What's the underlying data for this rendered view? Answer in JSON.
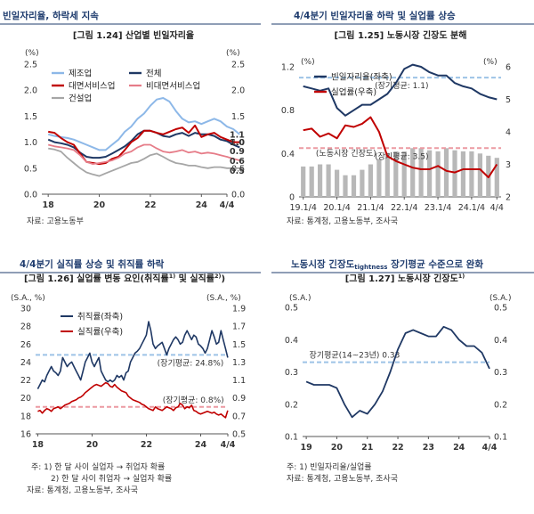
{
  "headers": {
    "tl": "빈일자리율, 하락세 지속",
    "tr": "4/4분기 빈일자리율 하락 및 실업률 상승",
    "bl": "4/4분기 실직률 상승 및 취직률 하락",
    "br_pre": "노동시장 긴장도",
    "br_sub": "tightness",
    "br_post": " 장기평균 수준으로 완화"
  },
  "colors": {
    "navy": "#1f3864",
    "red": "#c00000",
    "pink": "#e67c88",
    "pink_avg": "#ec9aa2",
    "sky": "#8db8e8",
    "sky_avg": "#9dc3e6",
    "blue": "#4472c4",
    "gray": "#a6a6a6",
    "gray_light": "#b8b8b8",
    "header_line": "#1f3c6e"
  },
  "chart_data": [
    {
      "id": "1.24",
      "type": "line",
      "title": "[그림 1.24] 산업별 빈일자리율",
      "units": {
        "left": "(%)",
        "right": "(%)"
      },
      "ylim": [
        0,
        2.5
      ],
      "yticks_left": [
        "0.0",
        "0.5",
        "1.0",
        "1.5",
        "2.0",
        "2.5"
      ],
      "yticks_right": [
        "0.0",
        "0.5",
        "1.0",
        "1.5",
        "2.0",
        "2.5"
      ],
      "xlim": [
        17.75,
        25.0
      ],
      "xticks": [
        {
          "v": 18,
          "label": "18"
        },
        {
          "v": 20,
          "label": "20"
        },
        {
          "v": 22,
          "label": "22"
        },
        {
          "v": 24,
          "label": "24"
        },
        {
          "v": 25,
          "label": "4/4"
        }
      ],
      "x_start": 18.0,
      "x_step": 0.25,
      "series": [
        {
          "name": "제조업",
          "color": "sky",
          "width": 2.0,
          "values": [
            1.15,
            1.12,
            1.1,
            1.08,
            1.05,
            1.0,
            0.95,
            0.9,
            0.85,
            0.85,
            0.95,
            1.05,
            1.2,
            1.3,
            1.45,
            1.55,
            1.7,
            1.82,
            1.85,
            1.78,
            1.6,
            1.45,
            1.38,
            1.4,
            1.35,
            1.4,
            1.45,
            1.4,
            1.3,
            1.25,
            1.15
          ]
        },
        {
          "name": "전체",
          "color": "navy",
          "width": 2.0,
          "values": [
            1.05,
            1.0,
            0.98,
            0.95,
            0.9,
            0.8,
            0.72,
            0.7,
            0.7,
            0.72,
            0.78,
            0.85,
            0.92,
            1.02,
            1.15,
            1.22,
            1.22,
            1.18,
            1.12,
            1.1,
            1.15,
            1.18,
            1.12,
            1.18,
            1.15,
            1.15,
            1.12,
            1.05,
            1.02,
            0.95,
            0.9
          ]
        },
        {
          "name": "대면서비스업",
          "color": "red",
          "width": 2.0,
          "values": [
            1.2,
            1.18,
            1.08,
            1.0,
            0.95,
            0.78,
            0.62,
            0.6,
            0.58,
            0.6,
            0.68,
            0.72,
            0.85,
            1.0,
            1.08,
            1.22,
            1.22,
            1.18,
            1.15,
            1.2,
            1.25,
            1.28,
            1.18,
            1.32,
            1.1,
            1.15,
            1.18,
            1.1,
            1.05,
            1.0,
            1.0
          ]
        },
        {
          "name": "비대면서비스업",
          "color": "pink",
          "width": 1.8,
          "values": [
            0.95,
            0.92,
            0.9,
            0.88,
            0.85,
            0.75,
            0.62,
            0.58,
            0.6,
            0.62,
            0.65,
            0.7,
            0.78,
            0.82,
            0.9,
            0.95,
            0.95,
            0.88,
            0.82,
            0.8,
            0.82,
            0.85,
            0.8,
            0.82,
            0.78,
            0.8,
            0.78,
            0.75,
            0.72,
            0.68,
            0.65
          ]
        },
        {
          "name": "건설업",
          "color": "gray",
          "width": 1.8,
          "values": [
            0.88,
            0.86,
            0.82,
            0.7,
            0.6,
            0.5,
            0.42,
            0.38,
            0.35,
            0.4,
            0.45,
            0.5,
            0.55,
            0.6,
            0.62,
            0.68,
            0.75,
            0.78,
            0.72,
            0.65,
            0.6,
            0.58,
            0.55,
            0.55,
            0.52,
            0.5,
            0.52,
            0.52,
            0.5,
            0.5,
            0.5
          ]
        }
      ],
      "end_labels": [
        {
          "text": "1.1",
          "y": 1.15,
          "color": "sky"
        },
        {
          "text": "1.0",
          "y": 1.0,
          "color": "red"
        },
        {
          "text": "0.9",
          "y": 0.83,
          "color": "navy"
        },
        {
          "text": "0.6",
          "y": 0.64,
          "color": "pink"
        },
        {
          "text": "0.5",
          "y": 0.45,
          "color": "gray"
        }
      ],
      "source": "자료: 고용노동부"
    },
    {
      "id": "1.25",
      "type": "bar+line",
      "title": "[그림 1.25] 노동시장 긴장도 분해",
      "units": {
        "left": "(%)",
        "right": "(%)"
      },
      "ylim_left": [
        0,
        1.2
      ],
      "ylim_right": [
        2,
        6
      ],
      "yticks_left": [
        "0",
        "0.4",
        "0.8",
        "1.2"
      ],
      "yticks_right": [
        "2",
        "3",
        "4",
        "5",
        "6"
      ],
      "xlim": [
        -0.5,
        23.5
      ],
      "xticks": [
        {
          "v": 0,
          "label": "19.1/4"
        },
        {
          "v": 4,
          "label": "20.1/4"
        },
        {
          "v": 8,
          "label": "21.1/4"
        },
        {
          "v": 12,
          "label": "22.1/4"
        },
        {
          "v": 16,
          "label": "23.1/4"
        },
        {
          "v": 20,
          "label": "24.1/4"
        },
        {
          "v": 23,
          "label": "4/4"
        }
      ],
      "bars": {
        "name": "노동시장 긴장도",
        "axis": "left",
        "color": "gray_light",
        "values": [
          0.28,
          0.28,
          0.3,
          0.3,
          0.25,
          0.2,
          0.2,
          0.25,
          0.3,
          0.35,
          0.4,
          0.42,
          0.42,
          0.45,
          0.45,
          0.43,
          0.42,
          0.45,
          0.43,
          0.42,
          0.42,
          0.4,
          0.38,
          0.36
        ]
      },
      "series": [
        {
          "name": "빈일자리율(좌축)",
          "axis": "left",
          "color": "navy",
          "width": 2.0,
          "values": [
            1.02,
            1.0,
            0.98,
            1.0,
            0.82,
            0.75,
            0.8,
            0.85,
            0.85,
            0.9,
            0.95,
            1.05,
            1.18,
            1.22,
            1.2,
            1.15,
            1.12,
            1.12,
            1.05,
            1.02,
            1.0,
            0.95,
            0.92,
            0.9
          ]
        },
        {
          "name": "실업률(우축)",
          "axis": "right",
          "color": "red",
          "width": 2.0,
          "values": [
            4.05,
            4.1,
            3.85,
            3.95,
            3.8,
            4.2,
            4.15,
            4.25,
            4.45,
            4.0,
            3.25,
            3.1,
            3.0,
            2.9,
            2.85,
            2.85,
            2.95,
            2.8,
            2.75,
            2.85,
            2.85,
            2.85,
            2.6,
            3.0
          ]
        }
      ],
      "avg_lines": [
        {
          "axis": "left",
          "value": 1.1,
          "label": "(장기평균: 1.1)",
          "color": "sky_avg",
          "label_x": 8.5
        },
        {
          "axis": "right",
          "value": 3.5,
          "label": "(장기평균: 3.5)",
          "color": "pink_avg",
          "label_x": 8.5
        }
      ],
      "bar_label": {
        "text": "(노동시장 긴장도)",
        "x": 1.5,
        "y": 0.38
      },
      "source": "자료: 통계청, 고용노동부, 조사국"
    },
    {
      "id": "1.26",
      "type": "line",
      "title_pre": "[그림 1.26] 실업률 변동 요인(취직률",
      "title_mid": " 및 실직률",
      "title_post": ")",
      "title_sup1": "1)",
      "title_sup2": "2)",
      "units": {
        "left": "(S.A., %)",
        "right": "(S.A., %)"
      },
      "ylim_left": [
        16,
        30
      ],
      "ylim_right": [
        0.5,
        1.9
      ],
      "yticks_left": [
        "16",
        "18",
        "20",
        "22",
        "24",
        "26",
        "28",
        "30"
      ],
      "yticks_right": [
        "0.5",
        "0.7",
        "0.9",
        "1.1",
        "1.3",
        "1.5",
        "1.7",
        "1.9"
      ],
      "xlim": [
        17.92,
        25.0
      ],
      "xticks": [
        {
          "v": 18,
          "label": "18"
        },
        {
          "v": 20,
          "label": "20"
        },
        {
          "v": 22,
          "label": "22"
        },
        {
          "v": 24,
          "label": "24"
        },
        {
          "v": 25,
          "label": "4/4"
        }
      ],
      "x_start": 18.0,
      "x_step": 0.0833,
      "series": [
        {
          "name": "취직률(좌축)",
          "axis": "left",
          "color": "navy",
          "width": 1.6,
          "values": [
            21,
            21.5,
            22,
            21.8,
            22.5,
            23,
            23.5,
            23,
            22.8,
            22.5,
            23,
            24.5,
            24,
            23.5,
            23.8,
            24,
            23.5,
            23,
            22.5,
            22,
            23,
            24,
            24.5,
            25,
            24,
            23.5,
            24,
            24.5,
            23,
            22.5,
            22,
            21.8,
            22,
            21.8,
            22,
            22.5,
            22.3,
            22.5,
            22,
            22.8,
            23,
            24,
            24.5,
            25,
            25.2,
            25.5,
            26,
            26.5,
            27,
            28.5,
            27.5,
            26,
            25.5,
            25.8,
            26,
            26.2,
            25.5,
            24.8,
            25.5,
            26,
            26.5,
            26.8,
            26.5,
            26,
            26.2,
            27,
            27.5,
            27,
            26.5,
            27,
            26.8,
            26,
            25.8,
            25.5,
            25,
            25.5,
            26.5,
            27.5,
            26.8,
            26,
            26.2,
            27.5,
            26.5,
            25.5,
            24.5
          ]
        },
        {
          "name": "실직률(우축)",
          "axis": "right",
          "color": "red",
          "width": 1.6,
          "values": [
            0.75,
            0.76,
            0.73,
            0.76,
            0.78,
            0.77,
            0.75,
            0.78,
            0.79,
            0.8,
            0.78,
            0.8,
            0.82,
            0.83,
            0.84,
            0.86,
            0.87,
            0.88,
            0.9,
            0.91,
            0.93,
            0.96,
            0.98,
            1.0,
            1.02,
            1.04,
            1.05,
            1.04,
            1.03,
            1.05,
            1.07,
            1.06,
            1.03,
            1.02,
            1.05,
            1.02,
            1.0,
            0.98,
            0.97,
            0.96,
            0.92,
            0.9,
            0.88,
            0.87,
            0.86,
            0.85,
            0.83,
            0.82,
            0.8,
            0.78,
            0.77,
            0.76,
            0.8,
            0.78,
            0.77,
            0.76,
            0.78,
            0.8,
            0.79,
            0.78,
            0.76,
            0.79,
            0.8,
            0.84,
            0.82,
            0.78,
            0.8,
            0.79,
            0.82,
            0.76,
            0.75,
            0.73,
            0.72,
            0.73,
            0.74,
            0.75,
            0.74,
            0.73,
            0.74,
            0.72,
            0.71,
            0.72,
            0.7,
            0.68,
            0.76
          ]
        }
      ],
      "avg_lines": [
        {
          "axis": "left",
          "value": 24.8,
          "label": "(장기평균: 24.8%)",
          "color": "sky_avg",
          "label_x": 22.4
        },
        {
          "axis": "right",
          "value": 0.8,
          "label": "(장기평균: 0.8%)",
          "color": "pink_avg",
          "label_x": 22.6
        }
      ],
      "notes": [
        "주: 1) 한 달 사이 실업자 → 취업자 확률",
        "2) 한 달 사이 취업자 → 실업자 확률",
        "자료: 통계청, 고용노동부, 조사국"
      ]
    },
    {
      "id": "1.27",
      "type": "line",
      "title": "[그림 1.27] 노동시장 긴장도",
      "title_sup": "1)",
      "units": {
        "left": "(S.A.)",
        "right": "(S.A.)"
      },
      "ylim": [
        0.1,
        0.5
      ],
      "yticks_left": [
        "0.1",
        "0.2",
        "0.3",
        "0.4",
        "0.5"
      ],
      "yticks_right": [
        "0.1",
        "0.2",
        "0.3",
        "0.4",
        "0.5"
      ],
      "xlim": [
        18.88,
        25.0
      ],
      "xticks": [
        {
          "v": 19,
          "label": "19"
        },
        {
          "v": 20,
          "label": "20"
        },
        {
          "v": 21,
          "label": "21"
        },
        {
          "v": 22,
          "label": "22"
        },
        {
          "v": 23,
          "label": "23"
        },
        {
          "v": 24,
          "label": "24"
        },
        {
          "v": 25,
          "label": "4/4"
        }
      ],
      "x_start": 19.0,
      "x_step": 0.25,
      "series": [
        {
          "name": "노동시장 긴장도",
          "color": "navy",
          "width": 1.8,
          "values": [
            0.27,
            0.26,
            0.26,
            0.26,
            0.25,
            0.2,
            0.16,
            0.18,
            0.17,
            0.2,
            0.24,
            0.3,
            0.37,
            0.42,
            0.43,
            0.42,
            0.41,
            0.41,
            0.44,
            0.43,
            0.4,
            0.38,
            0.38,
            0.36,
            0.31
          ]
        }
      ],
      "avg_lines": [
        {
          "value": 0.33,
          "label": "장기평균(14~23년) 0.33",
          "color": "sky_avg",
          "label_x": 19.1
        }
      ],
      "notes": [
        "주: 1) 빈일자리율/실업률",
        "자료: 통계청, 고용노동부, 조사국"
      ]
    }
  ]
}
